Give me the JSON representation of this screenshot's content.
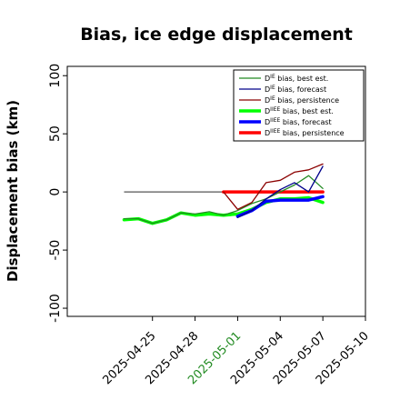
{
  "chart_data": {
    "type": "line",
    "title": "Bias, ice edge displacement",
    "xlabel": "",
    "ylabel": "Displacement bias (km)",
    "x_start_date": "2025-04-22",
    "xlim_days": [
      -3,
      18
    ],
    "ylim": [
      -107,
      108
    ],
    "yticks": [
      -100,
      -50,
      0,
      50,
      100
    ],
    "xtick_days": [
      3,
      6,
      9,
      12,
      15,
      18
    ],
    "xtick_labels": [
      "2025-04-25",
      "2025-04-28",
      "2025-05-01",
      "2025-05-04",
      "2025-05-07",
      "2025-05-10"
    ],
    "highlight_tick_index": 2,
    "highlight_color": "#228b22",
    "zero_line": {
      "y": 0,
      "x_from": 1,
      "x_to": 15,
      "color": "#555555"
    },
    "legend": {
      "position": "top-right"
    },
    "series": [
      {
        "name": "D^IE bias, best est.",
        "label_base": "D",
        "label_sup": "IE",
        "label_rest": " bias, best est.",
        "color": "#228b22",
        "width": 1.3,
        "x": [
          1,
          2,
          3,
          4,
          5,
          6,
          7,
          8,
          9,
          10,
          11,
          12,
          13,
          14,
          15
        ],
        "y": [
          -23,
          -23,
          -27,
          -24,
          -18,
          -19,
          -17,
          -20,
          -16,
          -10,
          -6,
          0,
          6,
          14,
          3
        ]
      },
      {
        "name": "D^IE bias, forecast",
        "label_base": "D",
        "label_sup": "IE",
        "label_rest": " bias, forecast",
        "color": "#00008b",
        "width": 1.3,
        "x": [
          9,
          10,
          11,
          12,
          13,
          14,
          15
        ],
        "y": [
          -22,
          -16,
          -6,
          2,
          8,
          0,
          22
        ]
      },
      {
        "name": "D^IE bias, persistence",
        "label_base": "D",
        "label_sup": "IE",
        "label_rest": " bias, persistence",
        "color": "#8b0000",
        "width": 1.3,
        "x": [
          8,
          9,
          10,
          11,
          12,
          13,
          14,
          15
        ],
        "y": [
          0,
          -15,
          -9,
          8,
          10,
          17,
          19,
          24
        ]
      },
      {
        "name": "D^IIEE bias, best est.",
        "label_base": "D",
        "label_sup": "IIEE",
        "label_rest": " bias, best est.",
        "color": "#00ff00",
        "width": 3.5,
        "x": [
          1,
          2,
          3,
          4,
          5,
          6,
          7,
          8,
          9,
          10,
          11,
          12,
          13,
          14,
          15
        ],
        "y": [
          -24,
          -23,
          -27,
          -24,
          -18,
          -20,
          -19,
          -20,
          -19,
          -15,
          -9,
          -6,
          -6,
          -5,
          -9
        ]
      },
      {
        "name": "D^IIEE bias, forecast",
        "label_base": "D",
        "label_sup": "IIEE",
        "label_rest": " bias, forecast",
        "color": "#0000ff",
        "width": 3.5,
        "x": [
          9,
          10,
          11,
          12,
          13,
          14,
          15
        ],
        "y": [
          -21,
          -16,
          -8,
          -7,
          -7,
          -7,
          -4
        ]
      },
      {
        "name": "D^IIEE bias, persistence",
        "label_base": "D",
        "label_sup": "IIEE",
        "label_rest": " bias, persistence",
        "color": "#ff0000",
        "width": 3.5,
        "x": [
          8,
          9,
          10,
          11,
          12,
          13,
          14,
          15
        ],
        "y": [
          0,
          0,
          0,
          0,
          0,
          0,
          0,
          0
        ]
      }
    ]
  }
}
